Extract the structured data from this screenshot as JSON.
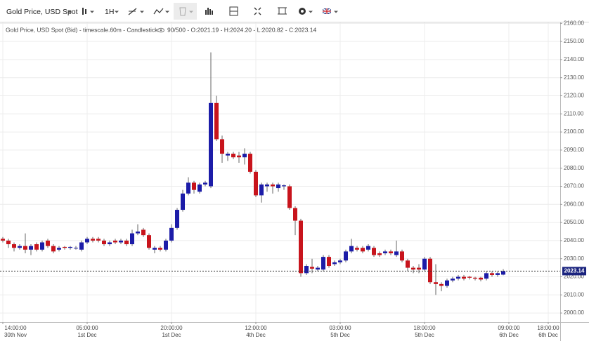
{
  "toolbar": {
    "symbol": "Gold Price, USD Spot",
    "interval": "1H"
  },
  "chart_data": {
    "type": "candlestick",
    "title": "Gold Price, USD Spot (Bid) - timescale.60m - Candlestick",
    "status": "90/500 - O:2021.19 - H:2024.20 - L:2020.82 - C:2023.14",
    "up_color": "#1c1ca8",
    "down_color": "#c8141c",
    "grid": true,
    "categories": [
      "14:00:00",
      null,
      null,
      null,
      null,
      null,
      null,
      null,
      null,
      null,
      null,
      null,
      null,
      null,
      null,
      "05:00:00",
      null,
      null,
      null,
      null,
      null,
      null,
      null,
      null,
      null,
      null,
      null,
      null,
      null,
      null,
      "20:00:00",
      null,
      null,
      null,
      null,
      null,
      null,
      null,
      null,
      null,
      null,
      null,
      null,
      null,
      null,
      "12:00:00",
      null,
      null,
      null,
      null,
      null,
      null,
      null,
      null,
      null,
      null,
      null,
      null,
      null,
      null,
      "03:00:00",
      null,
      null,
      null,
      null,
      null,
      null,
      null,
      null,
      null,
      null,
      null,
      null,
      null,
      null,
      "18:00:00",
      null,
      null,
      null,
      null,
      null,
      null,
      null,
      null,
      null,
      null,
      null,
      null,
      null,
      null,
      "09:00:00",
      null,
      null,
      null,
      null,
      null,
      null,
      "18:00:00"
    ],
    "category_dates": [
      "30th Nov",
      null,
      null,
      null,
      null,
      null,
      null,
      null,
      null,
      null,
      null,
      null,
      null,
      null,
      null,
      "1st Dec",
      null,
      null,
      null,
      null,
      null,
      null,
      null,
      null,
      null,
      null,
      null,
      null,
      null,
      null,
      "1st Dec",
      null,
      null,
      null,
      null,
      null,
      null,
      null,
      null,
      null,
      null,
      null,
      null,
      null,
      null,
      "4th Dec",
      null,
      null,
      null,
      null,
      null,
      null,
      null,
      null,
      null,
      null,
      null,
      null,
      null,
      null,
      "5th Dec",
      null,
      null,
      null,
      null,
      null,
      null,
      null,
      null,
      null,
      null,
      null,
      null,
      null,
      null,
      "5th Dec",
      null,
      null,
      null,
      null,
      null,
      null,
      null,
      null,
      null,
      null,
      null,
      null,
      null,
      null,
      "6th Dec",
      null,
      null,
      null,
      null,
      null,
      null,
      "6th Dec"
    ],
    "open": [
      2041,
      2040,
      2038,
      2036,
      2037,
      2035,
      2038,
      2035,
      2040,
      2037,
      2035,
      2036.5,
      2036,
      2036,
      2035,
      2039,
      2041,
      2041,
      2040,
      2038,
      2040,
      2039,
      2040,
      2038,
      2044,
      2046,
      2043,
      2035,
      2036,
      2035,
      2040,
      2047,
      2057,
      2066,
      2072,
      2067,
      2071,
      2070,
      2116,
      2096,
      2087,
      2088,
      2087,
      2086,
      2088,
      2078,
      2065,
      2070,
      2071,
      2069,
      2070,
      2070,
      2058,
      2051,
      2022,
      2025.5,
      2024,
      2024,
      2031,
      2027,
      2028,
      2029,
      2034,
      2036,
      2036,
      2035,
      2036,
      2033,
      2033,
      2034,
      2032,
      2034,
      2029,
      2025,
      2025,
      2024,
      2030,
      2017,
      2016,
      2015,
      2018,
      2019,
      2020,
      2020,
      2019.5,
      2019.5,
      2019,
      2022,
      2021,
      2021.19,
      null,
      null,
      null,
      null,
      null,
      null,
      null,
      null
    ],
    "high": [
      2042,
      2041,
      2039,
      2038,
      2044,
      2038,
      2039,
      2040,
      2041,
      2038,
      2037,
      2037,
      2037,
      2037,
      2040,
      2042,
      2042,
      2042,
      2041,
      2040,
      2041,
      2041,
      2041,
      2046,
      2049,
      2047,
      2044,
      2037,
      2037,
      2041,
      2049,
      2058,
      2068,
      2075,
      2073,
      2072,
      2073,
      2144,
      2120,
      2098,
      2089,
      2089,
      2089,
      2091,
      2089,
      2079,
      2072,
      2072,
      2072,
      2072,
      2071,
      2071,
      2059,
      2052,
      2027,
      2030,
      2026,
      2032,
      2032,
      2029,
      2030,
      2035,
      2041,
      2037,
      2037,
      2038,
      2037,
      2034,
      2035,
      2035,
      2040,
      2035,
      2030,
      2026,
      2027,
      2031,
      2031,
      2027,
      2017,
      2019,
      2020,
      2021,
      2021,
      2020.5,
      2020,
      2020,
      2023,
      2023,
      2023,
      2024.2,
      null,
      null,
      null,
      null,
      null,
      null,
      null,
      null
    ],
    "low": [
      2039,
      2036,
      2034,
      2035,
      2033,
      2032,
      2034,
      2034,
      2036,
      2033,
      2034,
      2035,
      2035,
      2035,
      2034,
      2038,
      2039,
      2039,
      2037,
      2037,
      2038,
      2038,
      2037,
      2037,
      2043,
      2042,
      2035,
      2033,
      2034,
      2034,
      2039,
      2046,
      2056,
      2065,
      2066,
      2066,
      2070,
      2069,
      2095,
      2083,
      2084,
      2085,
      2083,
      2082,
      2077,
      2064,
      2061,
      2067,
      2066,
      2067,
      2068,
      2057,
      2043,
      2020,
      2021,
      2022,
      2023,
      2023,
      2025,
      2026,
      2027,
      2028,
      2033,
      2034,
      2033,
      2034,
      2031,
      2031,
      2032,
      2032,
      2031,
      2028,
      2023,
      2022,
      2022,
      2023,
      2016,
      2010,
      2012,
      2014,
      2017,
      2018,
      2018,
      2018.5,
      2018,
      2017.5,
      2018,
      2020,
      2020,
      2020.82,
      null,
      null,
      null,
      null,
      null,
      null,
      null,
      null
    ],
    "close": [
      2040,
      2038,
      2036,
      2037,
      2035,
      2037,
      2035,
      2039,
      2037,
      2034,
      2036,
      2036,
      2036.5,
      2036,
      2039,
      2041,
      2040,
      2040,
      2038,
      2039,
      2039,
      2040,
      2038,
      2044,
      2045,
      2043,
      2036,
      2036,
      2035,
      2040,
      2047,
      2057,
      2066,
      2072,
      2068,
      2071,
      2072,
      2116,
      2096,
      2088,
      2088,
      2086,
      2086,
      2088,
      2078,
      2065,
      2071,
      2071,
      2070,
      2071,
      2070.5,
      2058,
      2051,
      2022,
      2026,
      2024.5,
      2025,
      2031,
      2026,
      2028,
      2029,
      2034,
      2037,
      2035,
      2034,
      2037,
      2032,
      2032,
      2034,
      2033,
      2034,
      2029,
      2025,
      2024,
      2024,
      2030,
      2017,
      2016,
      2015,
      2018,
      2019,
      2020,
      2019,
      2019.5,
      2019,
      2018.5,
      2022,
      2021,
      2022,
      2023.14,
      null,
      null,
      null,
      null,
      null,
      null,
      null,
      null
    ],
    "ylim": [
      1995,
      2160.5
    ],
    "yticks": [
      {
        "value": 2000,
        "label": "2000.00"
      },
      {
        "value": 2010,
        "label": "2010.00"
      },
      {
        "value": 2020,
        "label": "2020.00"
      },
      {
        "value": 2030,
        "label": "2030.00"
      },
      {
        "value": 2040,
        "label": "2040.00"
      },
      {
        "value": 2050,
        "label": "2050.00"
      },
      {
        "value": 2060,
        "label": "2060.00"
      },
      {
        "value": 2070,
        "label": "2070.00"
      },
      {
        "value": 2080,
        "label": "2080.00"
      },
      {
        "value": 2090,
        "label": "2090.00"
      },
      {
        "value": 2100,
        "label": "2100.00"
      },
      {
        "value": 2110,
        "label": "2110.00"
      },
      {
        "value": 2120,
        "label": "2120.00"
      },
      {
        "value": 2130,
        "label": "2130.00"
      },
      {
        "value": 2140,
        "label": "2140.00"
      },
      {
        "value": 2150,
        "label": "2150.00"
      },
      {
        "value": 2160,
        "label": "2160.00"
      }
    ]
  }
}
